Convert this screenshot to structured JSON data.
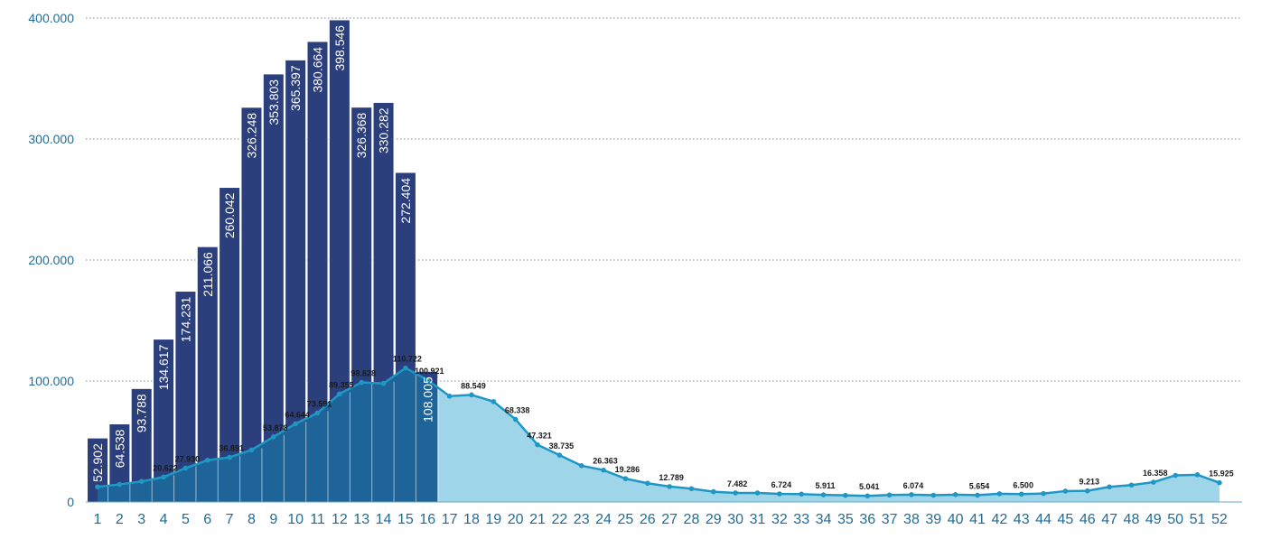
{
  "chart_data": {
    "type": "bar+area",
    "title": "",
    "xlabel": "",
    "ylabel": "",
    "ylim": [
      0,
      400000
    ],
    "y_ticks": [
      0,
      100000,
      200000,
      300000,
      400000
    ],
    "y_tick_labels": [
      "0",
      "100.000",
      "200.000",
      "300.000",
      "400.000"
    ],
    "grid": "horizontal dotted",
    "legend": "none",
    "categories": [
      "1",
      "2",
      "3",
      "4",
      "5",
      "6",
      "7",
      "8",
      "9",
      "10",
      "11",
      "12",
      "13",
      "14",
      "15",
      "16",
      "17",
      "18",
      "19",
      "20",
      "21",
      "22",
      "23",
      "24",
      "25",
      "26",
      "27",
      "28",
      "29",
      "30",
      "31",
      "32",
      "33",
      "34",
      "35",
      "36",
      "37",
      "38",
      "39",
      "40",
      "41",
      "42",
      "43",
      "44",
      "45",
      "46",
      "47",
      "48",
      "49",
      "50",
      "51",
      "52"
    ],
    "bar_series": {
      "values": [
        52902,
        64538,
        93788,
        134617,
        174231,
        211066,
        260042,
        326248,
        353803,
        365397,
        380664,
        398546,
        326368,
        330282,
        272404,
        108005
      ],
      "labels": [
        "52.902",
        "64.538",
        "93.788",
        "134.617",
        "174.231",
        "211.066",
        "260.042",
        "326.248",
        "353.803",
        "365.397",
        "380.664",
        "398.546",
        "326.368",
        "330.282",
        "272.404",
        "108.005"
      ]
    },
    "area_series": {
      "values": [
        12500,
        14500,
        17000,
        20622,
        27930,
        34500,
        36891,
        43000,
        53878,
        64644,
        73591,
        89355,
        98828,
        98000,
        110722,
        100921,
        87500,
        88549,
        83000,
        68338,
        47321,
        38735,
        30000,
        26363,
        19286,
        15500,
        12789,
        11000,
        8500,
        7482,
        7500,
        6724,
        6500,
        5911,
        5500,
        5041,
        5800,
        6074,
        5600,
        6100,
        5654,
        6800,
        6500,
        7000,
        9000,
        9213,
        12500,
        14000,
        16358,
        22000,
        22500,
        15925
      ],
      "labels": [
        "",
        "",
        "",
        "20.622",
        "27.930",
        "",
        "36.891",
        "",
        "53.878",
        "64.644",
        "73.591",
        "89.355",
        "98.828",
        "",
        "110.722",
        "100.921",
        "",
        "88.549",
        "",
        "68.338",
        "47.321",
        "38.735",
        "",
        "26.363",
        "19.286",
        "",
        "12.789",
        "",
        "",
        "7.482",
        "",
        "6.724",
        "",
        "5.911",
        "",
        "5.041",
        "",
        "6.074",
        "",
        "",
        "5.654",
        "",
        "6.500",
        "",
        "",
        "9.213",
        "",
        "",
        "16.358",
        "",
        "",
        "15.925"
      ]
    },
    "colors": {
      "bar": "#2b3f7c",
      "bar_stroke": "#ffffff",
      "area_overlap": "#1e6498",
      "area_light": "#9fd5e8",
      "line": "#1f97c4",
      "marker": "#1f97c4",
      "axis_label": "#1f6c97",
      "grid": "#8a8a8a",
      "bar_label": "#ffffff",
      "point_label": "#1a1a1a"
    }
  }
}
